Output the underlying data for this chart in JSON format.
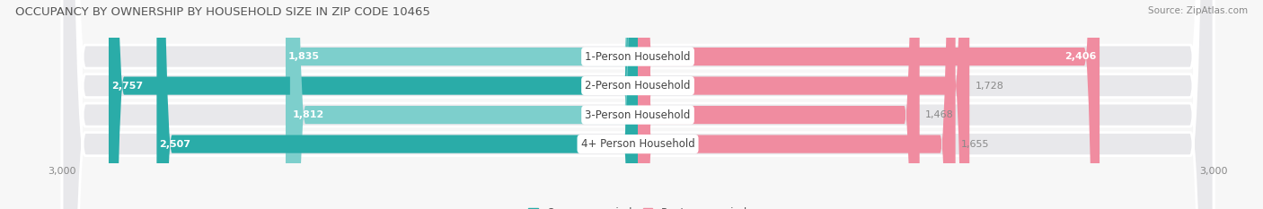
{
  "title": "OCCUPANCY BY OWNERSHIP BY HOUSEHOLD SIZE IN ZIP CODE 10465",
  "source": "Source: ZipAtlas.com",
  "categories": [
    "1-Person Household",
    "2-Person Household",
    "3-Person Household",
    "4+ Person Household"
  ],
  "owner_values": [
    1835,
    2757,
    1812,
    2507
  ],
  "renter_values": [
    2406,
    1728,
    1468,
    1655
  ],
  "max_val": 3000,
  "owner_color_light": "#7dcfcc",
  "owner_color_dark": "#2aaca8",
  "renter_color": "#f08ca0",
  "bg_row_color": "#e8e8eb",
  "fig_bg_color": "#f7f7f7",
  "title_fontsize": 9.5,
  "label_fontsize": 8,
  "tick_fontsize": 8,
  "legend_fontsize": 8.5,
  "source_fontsize": 7.5,
  "category_label_fontsize": 8.5
}
